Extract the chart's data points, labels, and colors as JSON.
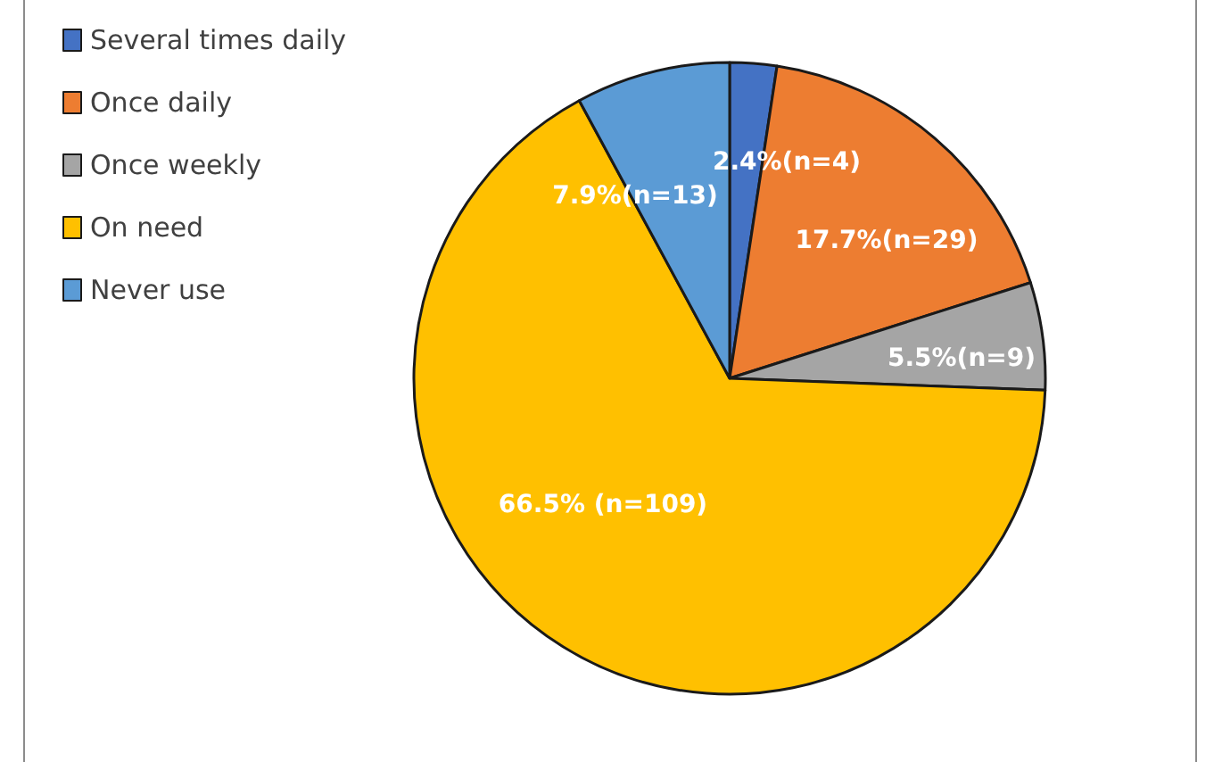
{
  "chart_data": {
    "type": "pie",
    "categories": [
      "Several times daily",
      "Once daily",
      "Once weekly",
      "On need",
      "Never use"
    ],
    "values": [
      2.4,
      17.7,
      5.5,
      66.5,
      7.9
    ],
    "colors": [
      "#4472c4",
      "#ed7d31",
      "#a5a5a5",
      "#ffc000",
      "#5b9bd5"
    ],
    "value_labels": [
      "2.4%(n=4)",
      "17.7%(n=29)",
      "5.5%(n=9)",
      "66.5% (n=109)",
      "7.9%(n=13)"
    ],
    "legend": "top left"
  }
}
